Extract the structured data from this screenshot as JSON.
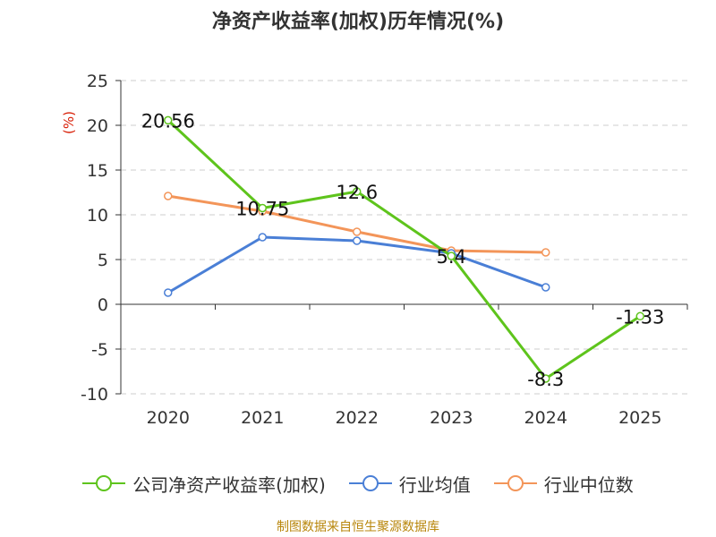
{
  "title": "净资产收益率(加权)历年情况(%)",
  "footer": "制图数据来自恒生聚源数据库",
  "chart_data": {
    "type": "line",
    "title": "净资产收益率(加权)历年情况(%)",
    "ylabel": "(%)",
    "xlabel": "",
    "categories": [
      "2020",
      "2021",
      "2022",
      "2023",
      "2024",
      "2025"
    ],
    "yticks": [
      "25",
      "20",
      "15",
      "10",
      "5",
      "0",
      "-5",
      "-10"
    ],
    "ylim": [
      -10,
      25
    ],
    "grid": true,
    "legend_position": "bottom",
    "series": [
      {
        "name": "公司净资产收益率(加权)",
        "color": "#5ec41c",
        "values": [
          20.56,
          10.75,
          12.6,
          5.4,
          -8.3,
          -1.33
        ],
        "labels": [
          "20.56",
          "10.75",
          "12.6",
          "5.4",
          "-8.3",
          "-1.33"
        ]
      },
      {
        "name": "行业均值",
        "color": "#4a7fd6",
        "values": [
          1.3,
          7.5,
          7.1,
          5.7,
          1.9,
          null
        ]
      },
      {
        "name": "行业中位数",
        "color": "#f39559",
        "values": [
          12.1,
          10.4,
          8.1,
          6.0,
          5.8,
          null
        ]
      }
    ]
  }
}
